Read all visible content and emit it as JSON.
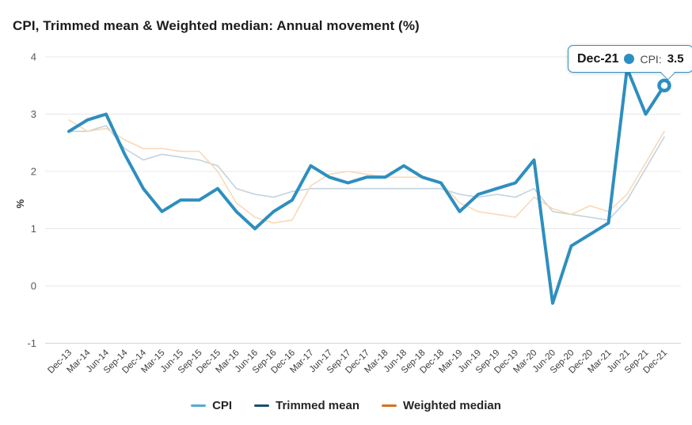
{
  "chart": {
    "title": "CPI, Trimmed mean & Weighted median: Annual movement (%)",
    "ylabel": "%"
  },
  "tooltip": {
    "period": "Dec-21",
    "series_label": "CPI:",
    "value": "3.5",
    "accent_color": "#2e8ebf"
  },
  "legend": {
    "items": [
      {
        "label": "CPI",
        "color": "#54abd1"
      },
      {
        "label": "Trimmed mean",
        "color": "#17506b"
      },
      {
        "label": "Weighted median",
        "color": "#d8701e"
      }
    ]
  },
  "chart_data": {
    "type": "line",
    "title": "CPI, Trimmed mean & Weighted median: Annual movement (%)",
    "xlabel": "",
    "ylabel": "%",
    "ylim": [
      -1,
      4
    ],
    "yticks": [
      4,
      3,
      2,
      1,
      0,
      -1
    ],
    "grid": true,
    "legend_position": "bottom",
    "categories": [
      "Dec-13",
      "Mar-14",
      "Jun-14",
      "Sep-14",
      "Dec-14",
      "Mar-15",
      "Jun-15",
      "Sep-15",
      "Dec-15",
      "Mar-16",
      "Jun-16",
      "Sep-16",
      "Dec-16",
      "Mar-17",
      "Jun-17",
      "Sep-17",
      "Dec-17",
      "Mar-18",
      "Jun-18",
      "Sep-18",
      "Dec-18",
      "Mar-19",
      "Jun-19",
      "Sep-19",
      "Dec-19",
      "Mar-20",
      "Jun-20",
      "Sep-20",
      "Dec-20",
      "Mar-21",
      "Jun-21",
      "Sep-21",
      "Dec-21"
    ],
    "series": [
      {
        "name": "Trimmed mean",
        "key": "trimmed-mean-line",
        "line_color": "#c2d3de",
        "line_width": 1.6,
        "values": [
          2.7,
          2.7,
          2.8,
          2.4,
          2.2,
          2.3,
          2.25,
          2.2,
          2.1,
          1.7,
          1.6,
          1.55,
          1.65,
          1.7,
          1.7,
          1.7,
          1.7,
          1.7,
          1.7,
          1.7,
          1.7,
          1.6,
          1.55,
          1.6,
          1.55,
          1.7,
          1.3,
          1.25,
          1.2,
          1.15,
          1.5,
          2.05,
          2.6
        ]
      },
      {
        "name": "Weighted median",
        "key": "weighted-median-line",
        "line_color": "#f8d9b8",
        "line_width": 1.6,
        "values": [
          2.9,
          2.7,
          2.75,
          2.55,
          2.4,
          2.4,
          2.35,
          2.35,
          2.0,
          1.45,
          1.2,
          1.1,
          1.15,
          1.75,
          1.95,
          2.0,
          1.95,
          1.9,
          1.9,
          1.9,
          1.8,
          1.45,
          1.3,
          1.25,
          1.2,
          1.55,
          1.35,
          1.25,
          1.4,
          1.3,
          1.6,
          2.15,
          2.7
        ]
      },
      {
        "name": "CPI",
        "key": "cpi-line",
        "line_color": "#2e8ebf",
        "line_width": 4,
        "values": [
          2.7,
          2.9,
          3.0,
          2.3,
          1.7,
          1.3,
          1.5,
          1.5,
          1.7,
          1.3,
          1.0,
          1.3,
          1.5,
          2.1,
          1.9,
          1.8,
          1.9,
          1.9,
          2.1,
          1.9,
          1.8,
          1.3,
          1.6,
          1.7,
          1.8,
          2.2,
          -0.3,
          0.7,
          0.9,
          1.1,
          3.8,
          3.0,
          3.5
        ]
      }
    ],
    "marker": {
      "series": "CPI",
      "category": "Dec-21",
      "value": 3.5,
      "style": "open-circle"
    },
    "colors": {
      "gridline": "#e8e8e8",
      "baseline": "#c9d5e6",
      "y_tick_text": "#595959",
      "x_tick_text": "#3d3d3d",
      "axis_title_text": "#333333"
    }
  }
}
